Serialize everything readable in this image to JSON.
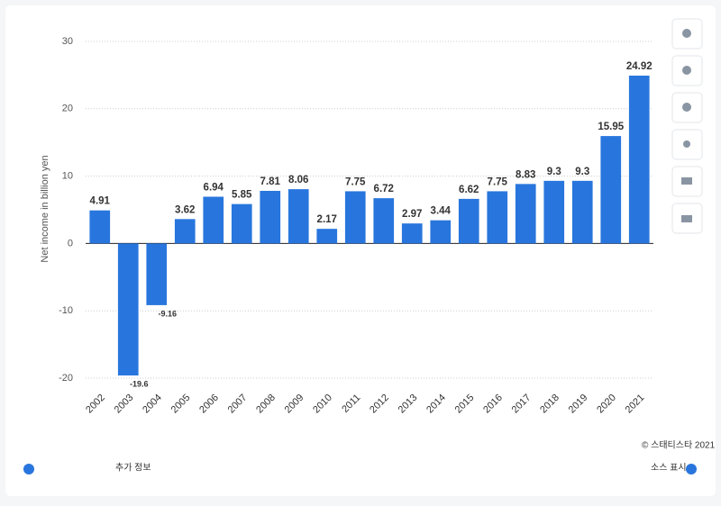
{
  "chart_data": {
    "type": "bar",
    "y_label": "Net income in billion yen",
    "categories": [
      "2002",
      "2003",
      "2004",
      "2005",
      "2006",
      "2007",
      "2008",
      "2009",
      "2010",
      "2011",
      "2012",
      "2013",
      "2014",
      "2015",
      "2016",
      "2017",
      "2018",
      "2019",
      "2020",
      "2021"
    ],
    "values": [
      4.91,
      -19.6,
      -9.16,
      3.62,
      6.94,
      5.85,
      7.81,
      8.06,
      2.17,
      7.75,
      6.72,
      2.97,
      3.44,
      6.62,
      7.75,
      8.83,
      9.3,
      9.3,
      15.95,
      24.92
    ],
    "color": "#2876dd",
    "ylim": [
      -20,
      30
    ],
    "yticks": [
      -20,
      -10,
      0,
      10,
      20,
      30
    ],
    "grid": true
  },
  "footer": {
    "copyright": "© 스태티스타 2021",
    "more_info": "추가 정보",
    "show_source": "소스 표시"
  }
}
